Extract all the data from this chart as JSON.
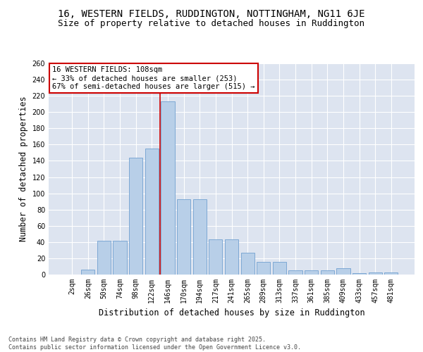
{
  "title_line1": "16, WESTERN FIELDS, RUDDINGTON, NOTTINGHAM, NG11 6JE",
  "title_line2": "Size of property relative to detached houses in Ruddington",
  "xlabel": "Distribution of detached houses by size in Ruddington",
  "ylabel": "Number of detached properties",
  "bar_labels": [
    "2sqm",
    "26sqm",
    "50sqm",
    "74sqm",
    "98sqm",
    "122sqm",
    "146sqm",
    "170sqm",
    "194sqm",
    "217sqm",
    "241sqm",
    "265sqm",
    "289sqm",
    "313sqm",
    "337sqm",
    "361sqm",
    "385sqm",
    "409sqm",
    "433sqm",
    "457sqm",
    "481sqm"
  ],
  "bar_values": [
    0,
    6,
    42,
    42,
    144,
    155,
    213,
    93,
    93,
    43,
    43,
    27,
    16,
    16,
    5,
    5,
    5,
    8,
    2,
    3,
    3
  ],
  "bar_color": "#b8cfe8",
  "bar_edgecolor": "#7da8d4",
  "vline_x": 5.5,
  "vline_color": "#cc0000",
  "annotation_text": "16 WESTERN FIELDS: 108sqm\n← 33% of detached houses are smaller (253)\n67% of semi-detached houses are larger (515) →",
  "annotation_box_color": "#cc0000",
  "ylim": [
    0,
    260
  ],
  "yticks": [
    0,
    20,
    40,
    60,
    80,
    100,
    120,
    140,
    160,
    180,
    200,
    220,
    240,
    260
  ],
  "bg_color": "#dde4f0",
  "grid_color": "#ffffff",
  "footer_text": "Contains HM Land Registry data © Crown copyright and database right 2025.\nContains public sector information licensed under the Open Government Licence v3.0.",
  "fig_bg": "#ffffff",
  "title_fontsize": 10,
  "subtitle_fontsize": 9,
  "axis_label_fontsize": 8.5,
  "tick_fontsize": 7,
  "annotation_fontsize": 7.5,
  "footer_fontsize": 6
}
